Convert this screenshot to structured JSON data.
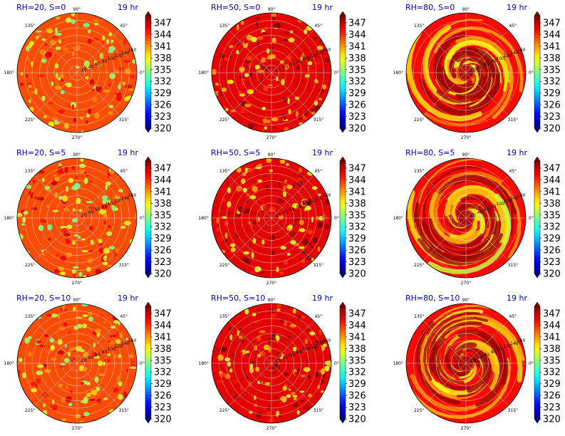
{
  "figure": {
    "rows": 3,
    "cols": 3,
    "colormap": "jet",
    "colorbar_ticks": [
      "347",
      "344",
      "341",
      "338",
      "335",
      "332",
      "329",
      "326",
      "323",
      "320"
    ],
    "colorbar_range": [
      320,
      350
    ],
    "colorbar_extend": "both"
  },
  "chart_data": [
    {
      "type": "heatmap",
      "projection": "polar",
      "title_left": "RH=20, S=0",
      "title_right": "19 hr",
      "mean_level": 344,
      "pattern": "speckle",
      "theta_ticks": [
        "90°",
        "45°",
        "0°",
        "315°",
        "270°",
        "225°",
        "180°",
        "135°"
      ],
      "r_ticks": [
        "20",
        "40",
        "60",
        "80",
        "100",
        "120",
        "140",
        "160"
      ]
    },
    {
      "type": "heatmap",
      "projection": "polar",
      "title_left": "RH=50, S=0",
      "title_right": "19 hr",
      "mean_level": 347,
      "pattern": "speckle",
      "theta_ticks": [
        "90°",
        "45°",
        "0°",
        "315°",
        "270°",
        "225°",
        "180°",
        "135°"
      ],
      "r_ticks": [
        "20",
        "40",
        "60",
        "80",
        "100",
        "120",
        "140",
        "160"
      ]
    },
    {
      "type": "heatmap",
      "projection": "polar",
      "title_left": "RH=80, S=0",
      "title_right": "19 hr",
      "mean_level": 346,
      "pattern": "spiral",
      "theta_ticks": [
        "90°",
        "45°",
        "0°",
        "315°",
        "270°",
        "225°",
        "180°",
        "135°"
      ],
      "r_ticks": [
        "20",
        "40",
        "60",
        "80",
        "100",
        "120",
        "140",
        "160"
      ]
    },
    {
      "type": "heatmap",
      "projection": "polar",
      "title_left": "RH=20, S=5",
      "title_right": "19 hr",
      "mean_level": 344,
      "pattern": "speckle",
      "theta_ticks": [
        "90°",
        "45°",
        "0°",
        "315°",
        "270°",
        "225°",
        "180°",
        "135°"
      ],
      "r_ticks": [
        "20",
        "40",
        "60",
        "80",
        "100",
        "120",
        "140",
        "160"
      ]
    },
    {
      "type": "heatmap",
      "projection": "polar",
      "title_left": "RH=50, S=5",
      "title_right": "19 hr",
      "mean_level": 347,
      "pattern": "speckle",
      "theta_ticks": [
        "90°",
        "45°",
        "0°",
        "315°",
        "270°",
        "225°",
        "180°",
        "135°"
      ],
      "r_ticks": [
        "20",
        "40",
        "60",
        "80",
        "100",
        "120",
        "140",
        "160"
      ]
    },
    {
      "type": "heatmap",
      "projection": "polar",
      "title_left": "RH=80, S=5",
      "title_right": "19 hr",
      "mean_level": 346,
      "pattern": "spiral",
      "theta_ticks": [
        "90°",
        "45°",
        "0°",
        "315°",
        "270°",
        "225°",
        "180°",
        "135°"
      ],
      "r_ticks": [
        "20",
        "40",
        "60",
        "80",
        "100",
        "120",
        "140",
        "160"
      ]
    },
    {
      "type": "heatmap",
      "projection": "polar",
      "title_left": "RH=20, S=10",
      "title_right": "19 hr",
      "mean_level": 344,
      "pattern": "speckle",
      "theta_ticks": [
        "90°",
        "45°",
        "0°",
        "315°",
        "270°",
        "225°",
        "180°",
        "135°"
      ],
      "r_ticks": [
        "20",
        "40",
        "60",
        "80",
        "100",
        "120",
        "140",
        "160"
      ]
    },
    {
      "type": "heatmap",
      "projection": "polar",
      "title_left": "RH=50, S=10",
      "title_right": "19 hr",
      "mean_level": 347,
      "pattern": "speckle",
      "theta_ticks": [
        "90°",
        "45°",
        "0°",
        "315°",
        "270°",
        "225°",
        "180°",
        "135°"
      ],
      "r_ticks": [
        "20",
        "40",
        "60",
        "80",
        "100",
        "120",
        "140",
        "160"
      ]
    },
    {
      "type": "heatmap",
      "projection": "polar",
      "title_left": "RH=80, S=10",
      "title_right": "19 hr",
      "mean_level": 346,
      "pattern": "spiral",
      "theta_ticks": [
        "90°",
        "45°",
        "0°",
        "315°",
        "270°",
        "225°",
        "180°",
        "135°"
      ],
      "r_ticks": [
        "20",
        "40",
        "60",
        "80",
        "100",
        "120",
        "140",
        "160"
      ]
    }
  ]
}
